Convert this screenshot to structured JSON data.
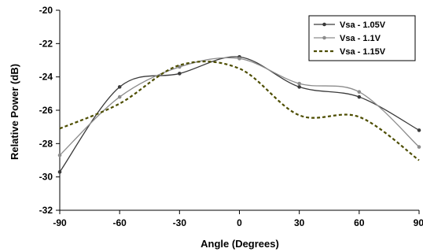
{
  "chart_data": {
    "type": "line",
    "xlabel": "Angle (Degrees)",
    "ylabel": "Relative Power (dB)",
    "xlim": [
      -90,
      90
    ],
    "ylim": [
      -32,
      -20
    ],
    "x_ticks": [
      -90,
      -60,
      -30,
      0,
      30,
      60,
      90
    ],
    "y_ticks": [
      -20,
      -22,
      -24,
      -26,
      -28,
      -30,
      -32
    ],
    "grid": false,
    "legend_position": "top-right",
    "series": [
      {
        "name": "Vsa - 1.05V",
        "color": "#3a3a3a",
        "style": "solid",
        "marker": "circle",
        "x": [
          -90,
          -60,
          -30,
          0,
          30,
          60,
          90
        ],
        "y": [
          -29.7,
          -24.6,
          -23.8,
          -22.8,
          -24.6,
          -25.2,
          -27.2
        ]
      },
      {
        "name": "Vsa - 1.1V",
        "color": "#8c8c8c",
        "style": "solid",
        "marker": "circle",
        "x": [
          -90,
          -60,
          -30,
          0,
          30,
          60,
          90
        ],
        "y": [
          -28.7,
          -25.2,
          -23.4,
          -22.9,
          -24.4,
          -24.9,
          -28.2
        ]
      },
      {
        "name": "Vsa - 1.15V",
        "color": "#4d4d00",
        "style": "dashed",
        "marker": "none",
        "x": [
          -90,
          -60,
          -30,
          0,
          30,
          60,
          90
        ],
        "y": [
          -27.1,
          -25.6,
          -23.3,
          -23.5,
          -26.3,
          -26.4,
          -29.0
        ]
      }
    ]
  }
}
